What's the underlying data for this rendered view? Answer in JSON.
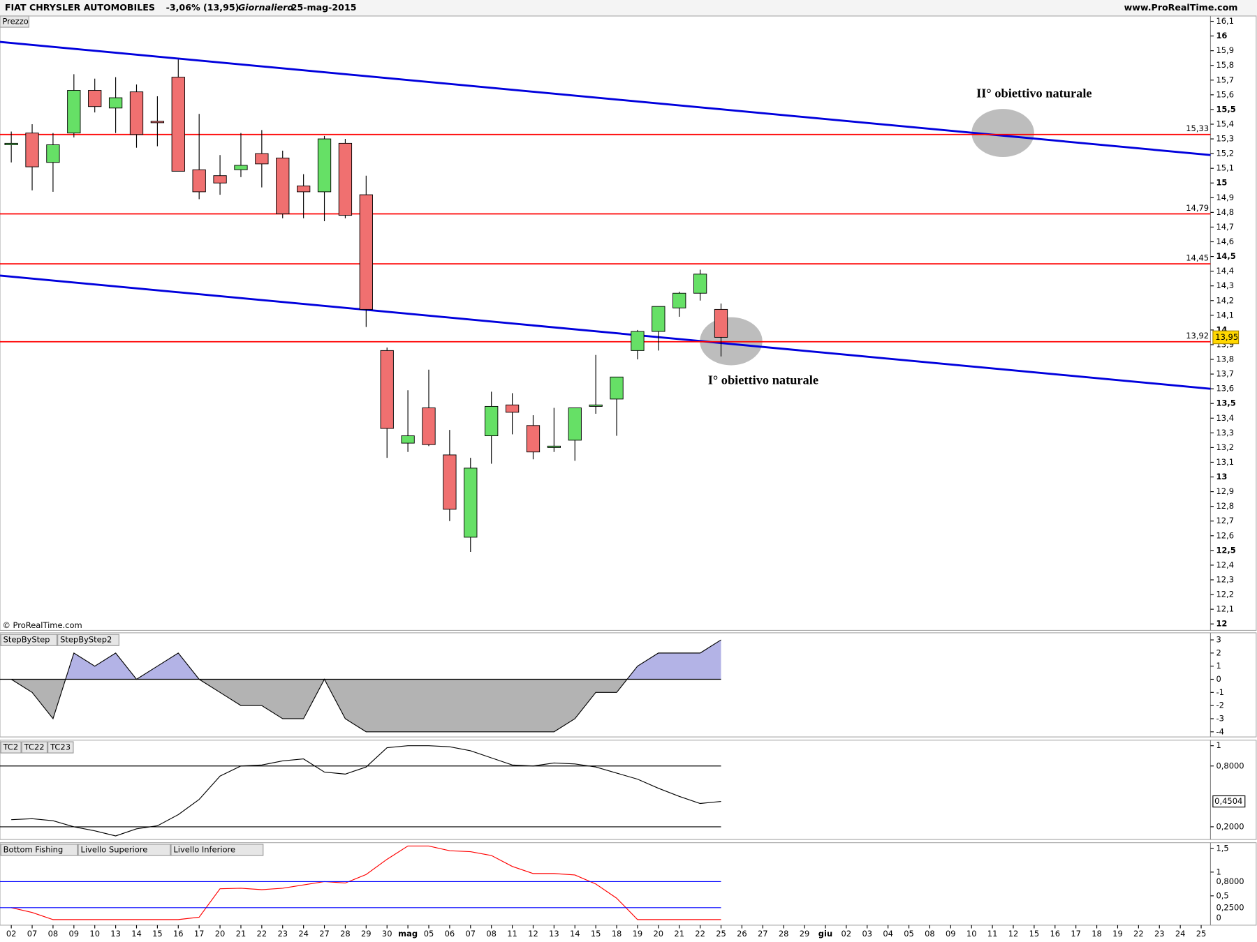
{
  "chart_data": [
    {
      "type": "candlestick",
      "title": "FIAT CHRYSLER AUTOMOBILES",
      "change": "-3,06% (13,95)",
      "period": "Giornaliero",
      "date": "25-mag-2015",
      "source": "www.ProRealTime.com",
      "panel_label": "Prezzo",
      "copyright": "© ProRealTime.com",
      "annotations": [
        "II° obiettivo naturale",
        "I° obiettivo naturale"
      ],
      "categories": [
        "02",
        "07",
        "08",
        "09",
        "10",
        "13",
        "14",
        "15",
        "16",
        "17",
        "20",
        "21",
        "22",
        "23",
        "24",
        "27",
        "28",
        "29",
        "30",
        "mag",
        "05",
        "06",
        "07",
        "08",
        "11",
        "12",
        "13",
        "14",
        "15",
        "18",
        "19",
        "20",
        "21",
        "22",
        "25",
        "26",
        "27",
        "28",
        "29",
        "giu",
        "02",
        "03",
        "04",
        "05",
        "08",
        "09",
        "10",
        "11",
        "12",
        "15",
        "16",
        "17",
        "18",
        "19",
        "22",
        "23",
        "24",
        "25"
      ],
      "open": [
        15.26,
        15.34,
        15.14,
        15.34,
        15.63,
        15.51,
        15.62,
        15.42,
        15.72,
        15.09,
        15.05,
        15.09,
        15.2,
        15.17,
        14.98,
        14.94,
        15.27,
        14.92,
        13.86,
        13.23,
        13.47,
        13.15,
        12.59,
        13.28,
        13.49,
        13.35,
        13.2,
        13.25,
        13.48,
        13.53,
        13.86,
        13.99,
        14.15,
        14.25,
        14.14,
        null,
        null,
        null,
        null,
        null,
        null,
        null,
        null,
        null,
        null,
        null,
        null,
        null,
        null,
        null,
        null,
        null,
        null,
        null,
        null,
        null,
        null,
        null
      ],
      "high": [
        15.35,
        15.4,
        15.34,
        15.74,
        15.71,
        15.72,
        15.67,
        15.59,
        15.84,
        15.47,
        15.19,
        15.34,
        15.36,
        15.22,
        15.06,
        15.32,
        15.3,
        15.05,
        13.88,
        13.59,
        13.73,
        13.32,
        13.13,
        13.58,
        13.57,
        13.42,
        13.47,
        13.47,
        13.83,
        13.68,
        14.0,
        14.16,
        14.26,
        14.41,
        14.18,
        null,
        null,
        null,
        null,
        null,
        null,
        null,
        null,
        null,
        null,
        null,
        null,
        null,
        null,
        null,
        null,
        null,
        null,
        null,
        null,
        null,
        null,
        null
      ],
      "low": [
        15.14,
        14.95,
        14.94,
        15.31,
        15.48,
        15.34,
        15.24,
        15.25,
        15.08,
        14.89,
        14.92,
        15.04,
        14.97,
        14.76,
        14.76,
        14.74,
        14.76,
        14.02,
        13.13,
        13.17,
        13.21,
        12.7,
        12.49,
        13.09,
        13.29,
        13.12,
        13.17,
        13.11,
        13.43,
        13.28,
        13.8,
        13.86,
        14.09,
        14.2,
        13.82,
        null,
        null,
        null,
        null,
        null,
        null,
        null,
        null,
        null,
        null,
        null,
        null,
        null,
        null,
        null,
        null,
        null,
        null,
        null,
        null,
        null,
        null,
        null
      ],
      "close": [
        15.27,
        15.11,
        15.26,
        15.63,
        15.52,
        15.58,
        15.33,
        15.41,
        15.08,
        14.94,
        15.0,
        15.12,
        15.13,
        14.79,
        14.94,
        15.3,
        14.78,
        14.14,
        13.33,
        13.28,
        13.22,
        12.78,
        13.06,
        13.48,
        13.44,
        13.17,
        13.21,
        13.47,
        13.49,
        13.68,
        13.99,
        14.16,
        14.25,
        14.38,
        13.95,
        null,
        null,
        null,
        null,
        null,
        null,
        null,
        null,
        null,
        null,
        null,
        null,
        null,
        null,
        null,
        null,
        null,
        null,
        null,
        null,
        null,
        null,
        null
      ],
      "last_value_label": "13,95",
      "up_color": "#66e066",
      "down_color": "#f07070",
      "hlines": [
        {
          "value": 15.33,
          "label": "15,33"
        },
        {
          "value": 14.79,
          "label": "14,79"
        },
        {
          "value": 14.45,
          "label": "14,45"
        },
        {
          "value": 13.92,
          "label": "13,92"
        }
      ],
      "hline_color": "#ff0000",
      "trendlines": [
        {
          "y": [
            15.96,
            15.19
          ]
        },
        {
          "y": [
            14.37,
            13.6
          ]
        }
      ],
      "trend_color": "#0000dd",
      "ylim": [
        11.956,
        16.136
      ],
      "yticks": [
        12,
        {
          "value": 12.1,
          "label": "12,1"
        },
        {
          "value": 12.2,
          "label": "12,2"
        },
        {
          "value": 12.3,
          "label": "12,3"
        },
        {
          "value": 12.4,
          "label": "12,4"
        },
        {
          "value": 12.5,
          "label": "12,5"
        },
        {
          "value": 12.6,
          "label": "12,6"
        },
        {
          "value": 12.7,
          "label": "12,7"
        },
        {
          "value": 12.8,
          "label": "12,8"
        },
        {
          "value": 12.9,
          "label": "12,9"
        },
        13,
        {
          "value": 13.1,
          "label": "13,1"
        },
        {
          "value": 13.2,
          "label": "13,2"
        },
        {
          "value": 13.3,
          "label": "13,3"
        },
        {
          "value": 13.4,
          "label": "13,4"
        },
        {
          "value": 13.5,
          "label": "13,5"
        },
        {
          "value": 13.6,
          "label": "13,6"
        },
        {
          "value": 13.7,
          "label": "13,7"
        },
        {
          "value": 13.8,
          "label": "13,8"
        },
        {
          "value": 13.9,
          "label": "13,9"
        },
        14,
        {
          "value": 14.1,
          "label": "14,1"
        },
        {
          "value": 14.2,
          "label": "14,2"
        },
        {
          "value": 14.3,
          "label": "14,3"
        },
        {
          "value": 14.4,
          "label": "14,4"
        },
        {
          "value": 14.5,
          "label": "14,5"
        },
        {
          "value": 14.6,
          "label": "14,6"
        },
        {
          "value": 14.7,
          "label": "14,7"
        },
        {
          "value": 14.8,
          "label": "14,8"
        },
        {
          "value": 14.9,
          "label": "14,9"
        },
        15,
        {
          "value": 15.1,
          "label": "15,1"
        },
        {
          "value": 15.2,
          "label": "15,2"
        },
        {
          "value": 15.3,
          "label": "15,3"
        },
        {
          "value": 15.4,
          "label": "15,4"
        },
        {
          "value": 15.5,
          "label": "15,5"
        },
        {
          "value": 15.6,
          "label": "15,6"
        },
        {
          "value": 15.7,
          "label": "15,7"
        },
        {
          "value": 15.8,
          "label": "15,8"
        },
        {
          "value": 15.9,
          "label": "15,9"
        },
        16,
        {
          "value": 16.1,
          "label": "16,1"
        }
      ]
    },
    {
      "type": "area",
      "legend": [
        "StepByStep",
        "StepByStep2"
      ],
      "values": [
        0,
        -1,
        -3,
        2,
        1,
        2,
        0,
        1,
        2,
        0,
        -1,
        -2,
        -2,
        -3,
        -3,
        0,
        -3,
        -4,
        -4,
        -4,
        -4,
        -4,
        -4,
        -4,
        -4,
        -4,
        -4,
        -3,
        -1,
        -1,
        1,
        2,
        2,
        2,
        3,
        null,
        null,
        null,
        null,
        null,
        null,
        null,
        null,
        null,
        null,
        null,
        null,
        null,
        null,
        null,
        null,
        null,
        null,
        null,
        null,
        null,
        null,
        null
      ],
      "pos_color": "#b3b3e6",
      "neg_color": "#b3b3b3",
      "ylim": [
        -4.39,
        3.54
      ],
      "yticks": [
        3,
        2,
        1,
        0,
        -1,
        -2,
        -3,
        -4
      ]
    },
    {
      "type": "line",
      "legend": [
        "TC2",
        "TC22",
        "TC23"
      ],
      "values": [
        0.27,
        0.28,
        0.26,
        0.2,
        0.16,
        0.11,
        0.18,
        0.21,
        0.32,
        0.47,
        0.7,
        0.8,
        0.81,
        0.85,
        0.87,
        0.74,
        0.72,
        0.79,
        0.98,
        1.0,
        1.0,
        0.99,
        0.95,
        0.88,
        0.81,
        0.8,
        0.83,
        0.82,
        0.79,
        0.73,
        0.67,
        0.58,
        0.5,
        0.43,
        0.4504,
        null,
        null,
        null,
        null,
        null,
        null,
        null,
        null,
        null,
        null,
        null,
        null,
        null,
        null,
        null,
        null,
        null,
        null,
        null,
        null,
        null,
        null,
        null
      ],
      "last_value_label": "0,4504",
      "color": "#000000",
      "levels": [
        0.8,
        0.2
      ],
      "ylim": [
        0.075,
        1.055
      ],
      "yticks": [
        1,
        {
          "value": 0.8,
          "label": "0,8000"
        },
        {
          "value": 0.2,
          "label": "0,2000"
        }
      ]
    },
    {
      "type": "line",
      "series": [
        {
          "name": "Bottom Fishing",
          "color": "#ff0000",
          "values": [
            0.25,
            0.15,
            0,
            0,
            0,
            0,
            0,
            0,
            0,
            0.05,
            0.65,
            0.66,
            0.63,
            0.66,
            0.73,
            0.8,
            0.77,
            0.95,
            1.27,
            1.55,
            1.55,
            1.45,
            1.43,
            1.35,
            1.12,
            0.97,
            0.97,
            0.94,
            0.75,
            0.45,
            0,
            0,
            0,
            0,
            0,
            null,
            null,
            null,
            null,
            null,
            null,
            null,
            null,
            null,
            null,
            null,
            null,
            null,
            null,
            null,
            null,
            null,
            null,
            null,
            null,
            null,
            null,
            null
          ]
        },
        {
          "name": "Livello Superiore",
          "color": "#0000ff",
          "value": 0.8,
          "value_label": "0,8000"
        },
        {
          "name": "Livello Inferiore",
          "color": "#0000ff",
          "value": 0.25,
          "value_label": "0,2500"
        }
      ],
      "ylim": [
        -0.118,
        1.62
      ],
      "yticks": [
        {
          "value": 1.5,
          "label": "1,5"
        },
        1,
        {
          "value": 0.5,
          "label": "0,5"
        }
      ]
    }
  ]
}
